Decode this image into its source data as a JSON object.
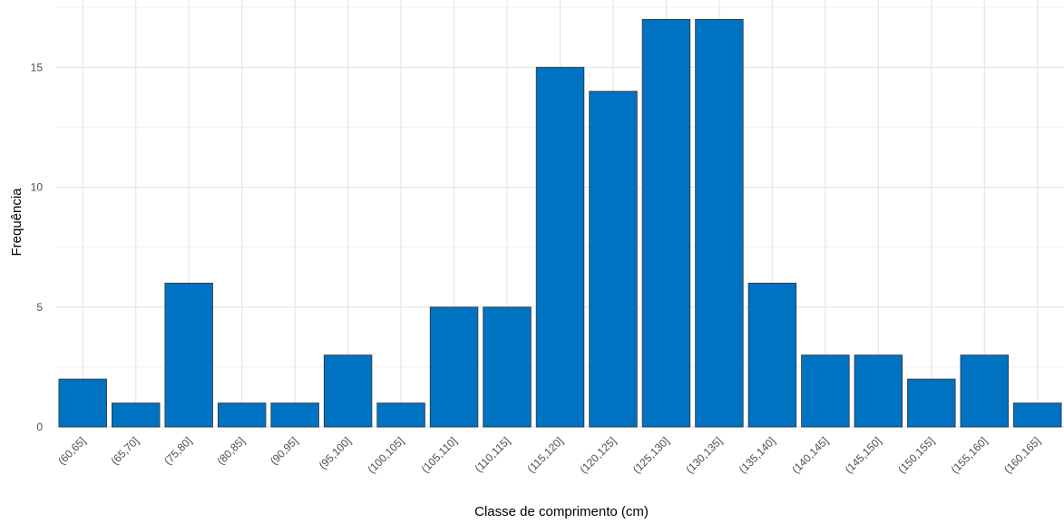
{
  "chart_data": {
    "type": "bar",
    "title": "",
    "xlabel": "Classe de comprimento (cm)",
    "ylabel": "Frequência",
    "categories": [
      "(60,65]",
      "(65,70]",
      "(75,80]",
      "(80,85]",
      "(90,95]",
      "(95,100]",
      "(100,105]",
      "(105,110]",
      "(110,115]",
      "(115,120]",
      "(120,125]",
      "(125,130]",
      "(130,135]",
      "(135,140]",
      "(140,145]",
      "(145,150]",
      "(150,155]",
      "(155,160]",
      "(160,165]"
    ],
    "values": [
      2,
      1,
      6,
      1,
      1,
      3,
      1,
      5,
      5,
      15,
      14,
      17,
      17,
      6,
      3,
      3,
      2,
      3,
      1
    ],
    "ylim": [
      0,
      17.85
    ],
    "yticks": [
      0,
      5,
      10,
      15
    ],
    "grid": true,
    "bar_color": "#0072C2",
    "bar_outline_color": "#333333"
  }
}
